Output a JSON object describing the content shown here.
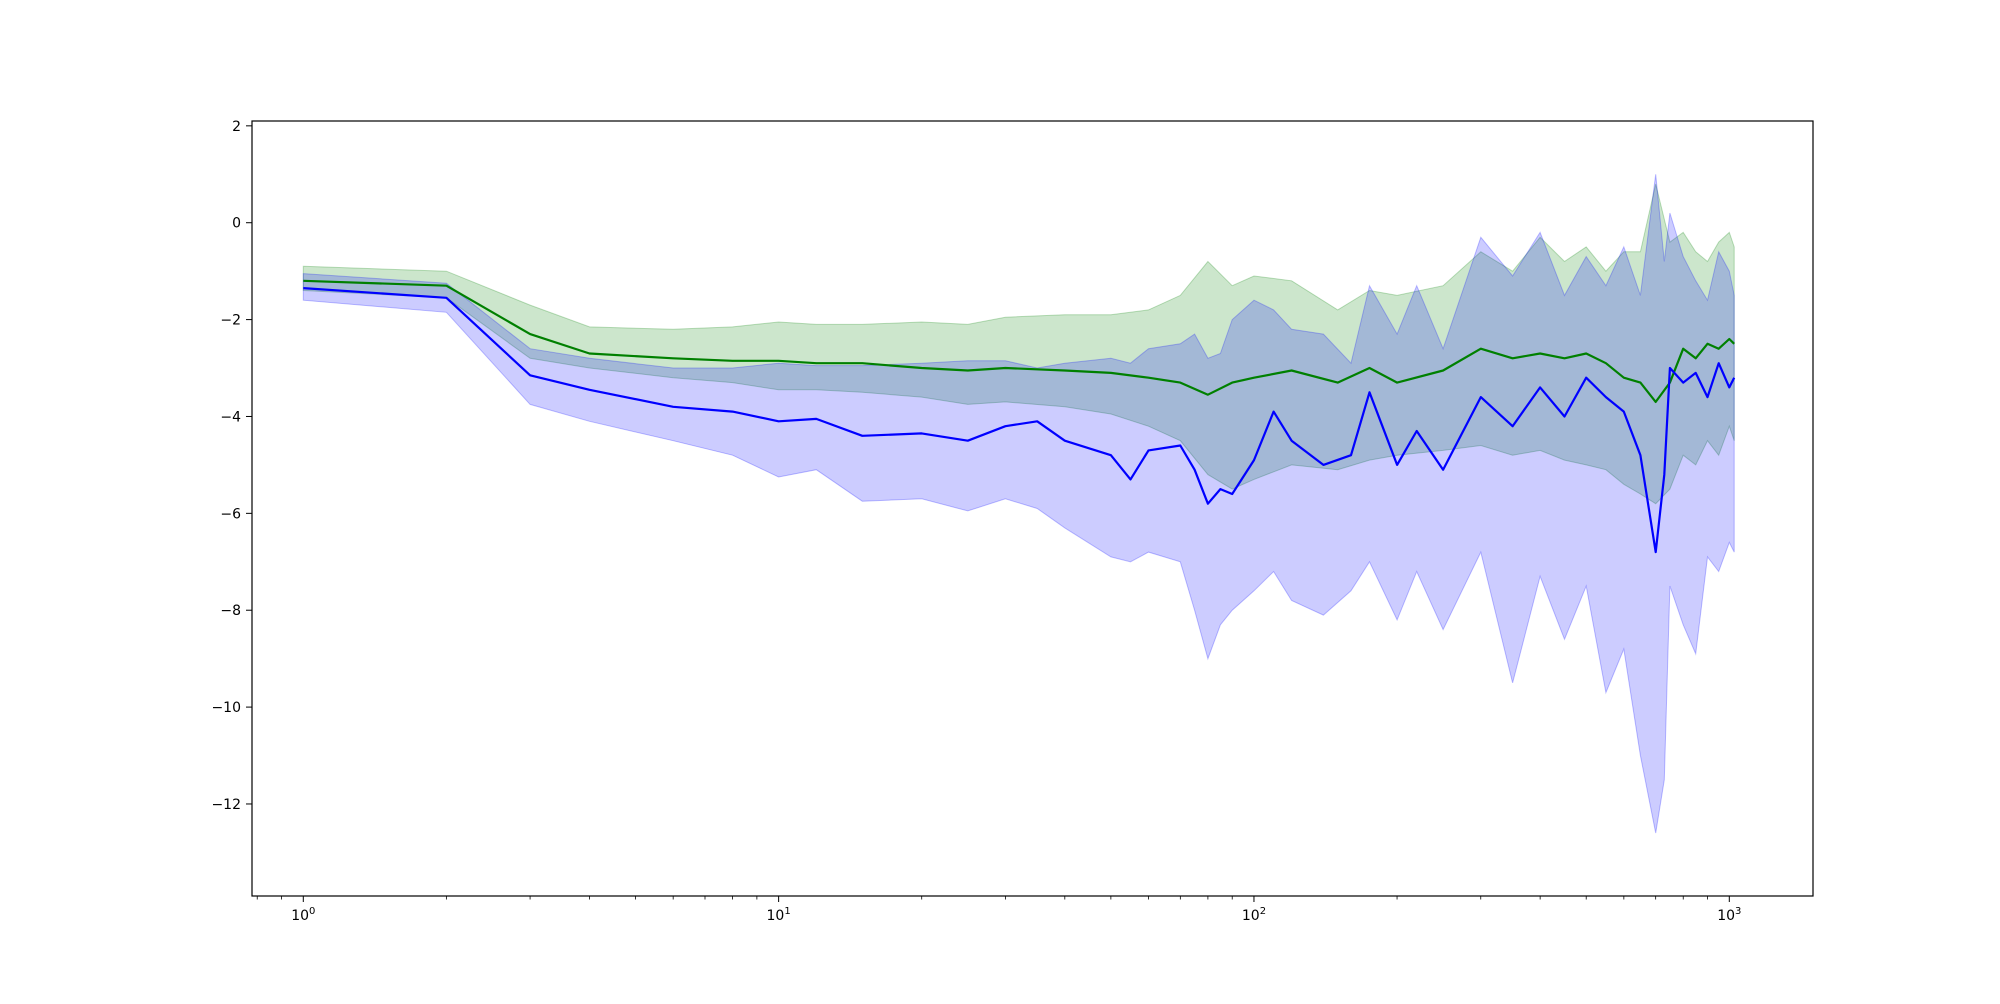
{
  "chart_data": {
    "type": "line",
    "title": "",
    "xlabel": "",
    "ylabel": "",
    "xscale": "log",
    "xlim": [
      0.78,
      1500
    ],
    "ylim": [
      -13.9,
      2.1
    ],
    "grid": false,
    "x_ticks": [
      {
        "value": 1,
        "base": "10",
        "exp": "0"
      },
      {
        "value": 10,
        "base": "10",
        "exp": "1"
      },
      {
        "value": 100,
        "base": "10",
        "exp": "2"
      },
      {
        "value": 1000,
        "base": "10",
        "exp": "3"
      }
    ],
    "y_ticks": [
      {
        "value": 2,
        "label": "2"
      },
      {
        "value": 0,
        "label": "0"
      },
      {
        "value": -2,
        "label": "−2"
      },
      {
        "value": -4,
        "label": "−4"
      },
      {
        "value": -6,
        "label": "−6"
      },
      {
        "value": -8,
        "label": "−8"
      },
      {
        "value": -10,
        "label": "−10"
      },
      {
        "value": -12,
        "label": "−12"
      }
    ],
    "series": [
      {
        "color": "#008000",
        "band_color": "#008000",
        "band_opacity": 0.2,
        "x": [
          1,
          2,
          3,
          4,
          6,
          8,
          10,
          12,
          15,
          20,
          25,
          30,
          40,
          50,
          60,
          70,
          80,
          90,
          100,
          120,
          150,
          175,
          200,
          250,
          300,
          350,
          400,
          450,
          500,
          550,
          600,
          650,
          700,
          750,
          800,
          850,
          900,
          950,
          1000,
          1024
        ],
        "mean": [
          -1.2,
          -1.3,
          -2.3,
          -2.7,
          -2.8,
          -2.85,
          -2.85,
          -2.9,
          -2.9,
          -3.0,
          -3.05,
          -3.0,
          -3.05,
          -3.1,
          -3.2,
          -3.3,
          -3.55,
          -3.3,
          -3.2,
          -3.05,
          -3.3,
          -3.0,
          -3.3,
          -3.05,
          -2.6,
          -2.8,
          -2.7,
          -2.8,
          -2.7,
          -2.9,
          -3.2,
          -3.3,
          -3.7,
          -3.3,
          -2.6,
          -2.8,
          -2.5,
          -2.6,
          -2.4,
          -2.5
        ],
        "upper": [
          -0.9,
          -1.0,
          -1.7,
          -2.15,
          -2.2,
          -2.15,
          -2.05,
          -2.1,
          -2.1,
          -2.05,
          -2.1,
          -1.95,
          -1.9,
          -1.9,
          -1.8,
          -1.5,
          -0.8,
          -1.3,
          -1.1,
          -1.2,
          -1.8,
          -1.4,
          -1.5,
          -1.3,
          -0.6,
          -1.0,
          -0.3,
          -0.8,
          -0.5,
          -1.0,
          -0.6,
          -0.6,
          0.8,
          -0.4,
          -0.2,
          -0.6,
          -0.8,
          -0.4,
          -0.2,
          -0.5
        ],
        "lower": [
          -1.4,
          -1.55,
          -2.8,
          -3.0,
          -3.2,
          -3.3,
          -3.45,
          -3.45,
          -3.5,
          -3.6,
          -3.75,
          -3.7,
          -3.8,
          -3.95,
          -4.2,
          -4.5,
          -5.2,
          -5.5,
          -5.3,
          -5.0,
          -5.1,
          -4.9,
          -4.8,
          -4.7,
          -4.6,
          -4.8,
          -4.7,
          -4.9,
          -5.0,
          -5.1,
          -5.4,
          -5.6,
          -5.8,
          -5.5,
          -4.8,
          -5.0,
          -4.5,
          -4.8,
          -4.2,
          -4.5
        ]
      },
      {
        "color": "#0000ff",
        "band_color": "#0000ff",
        "band_opacity": 0.2,
        "x": [
          1,
          2,
          3,
          4,
          6,
          8,
          10,
          12,
          15,
          20,
          25,
          30,
          35,
          40,
          50,
          55,
          60,
          70,
          75,
          80,
          85,
          90,
          100,
          110,
          120,
          140,
          160,
          175,
          200,
          220,
          250,
          300,
          350,
          400,
          450,
          500,
          550,
          600,
          650,
          700,
          730,
          750,
          800,
          850,
          900,
          950,
          1000,
          1024
        ],
        "mean": [
          -1.35,
          -1.55,
          -3.15,
          -3.45,
          -3.8,
          -3.9,
          -4.1,
          -4.05,
          -4.4,
          -4.35,
          -4.5,
          -4.2,
          -4.1,
          -4.5,
          -4.8,
          -5.3,
          -4.7,
          -4.6,
          -5.1,
          -5.8,
          -5.5,
          -5.6,
          -4.9,
          -3.9,
          -4.5,
          -5.0,
          -4.8,
          -3.5,
          -5.0,
          -4.3,
          -5.1,
          -3.6,
          -4.2,
          -3.4,
          -4.0,
          -3.2,
          -3.6,
          -3.9,
          -4.8,
          -6.8,
          -5.2,
          -3.0,
          -3.3,
          -3.1,
          -3.6,
          -2.9,
          -3.4,
          -3.2
        ],
        "upper": [
          -1.05,
          -1.25,
          -2.6,
          -2.8,
          -3.0,
          -3.0,
          -2.9,
          -2.95,
          -2.95,
          -2.9,
          -2.85,
          -2.85,
          -3.0,
          -2.9,
          -2.8,
          -2.9,
          -2.6,
          -2.5,
          -2.3,
          -2.8,
          -2.7,
          -2.0,
          -1.6,
          -1.8,
          -2.2,
          -2.3,
          -2.9,
          -1.3,
          -2.3,
          -1.3,
          -2.6,
          -0.3,
          -1.1,
          -0.2,
          -1.5,
          -0.7,
          -1.3,
          -0.5,
          -1.5,
          1.0,
          -0.8,
          0.2,
          -0.7,
          -1.2,
          -1.6,
          -0.6,
          -1.0,
          -1.5
        ],
        "lower": [
          -1.6,
          -1.85,
          -3.75,
          -4.1,
          -4.5,
          -4.8,
          -5.25,
          -5.1,
          -5.75,
          -5.7,
          -5.95,
          -5.7,
          -5.9,
          -6.3,
          -6.9,
          -7.0,
          -6.8,
          -7.0,
          -8.0,
          -9.0,
          -8.3,
          -8.0,
          -7.6,
          -7.2,
          -7.8,
          -8.1,
          -7.6,
          -7.0,
          -8.2,
          -7.2,
          -8.4,
          -6.8,
          -9.5,
          -7.3,
          -8.6,
          -7.5,
          -9.7,
          -8.8,
          -11.0,
          -12.6,
          -11.5,
          -7.5,
          -8.3,
          -8.9,
          -6.9,
          -7.2,
          -6.6,
          -6.8
        ]
      }
    ]
  }
}
